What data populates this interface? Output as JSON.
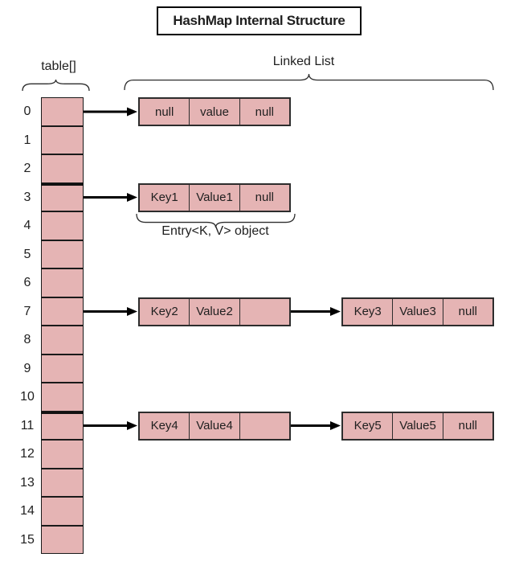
{
  "title": "HashMap Internal Structure",
  "labels": {
    "array": "table[]",
    "linked_list": "Linked List",
    "entry_object": "Entry<K, V> object"
  },
  "colors": {
    "cell_fill": "#e5b4b4",
    "border": "#2d2d2d",
    "arrow": "#000000"
  },
  "array": {
    "size": 16,
    "indices": [
      "0",
      "1",
      "2",
      "3",
      "4",
      "5",
      "6",
      "7",
      "8",
      "9",
      "10",
      "11",
      "12",
      "13",
      "14",
      "15"
    ]
  },
  "buckets": [
    {
      "index": 0,
      "nodes": [
        {
          "cells": [
            "null",
            "value",
            "null"
          ]
        }
      ]
    },
    {
      "index": 3,
      "nodes": [
        {
          "cells": [
            "Key1",
            "Value1",
            "null"
          ]
        }
      ]
    },
    {
      "index": 7,
      "nodes": [
        {
          "cells": [
            "Key2",
            "Value2",
            ""
          ]
        },
        {
          "cells": [
            "Key3",
            "Value3",
            "null"
          ]
        }
      ]
    },
    {
      "index": 11,
      "nodes": [
        {
          "cells": [
            "Key4",
            "Value4",
            ""
          ]
        },
        {
          "cells": [
            "Key5",
            "Value5",
            "null"
          ]
        }
      ]
    }
  ]
}
